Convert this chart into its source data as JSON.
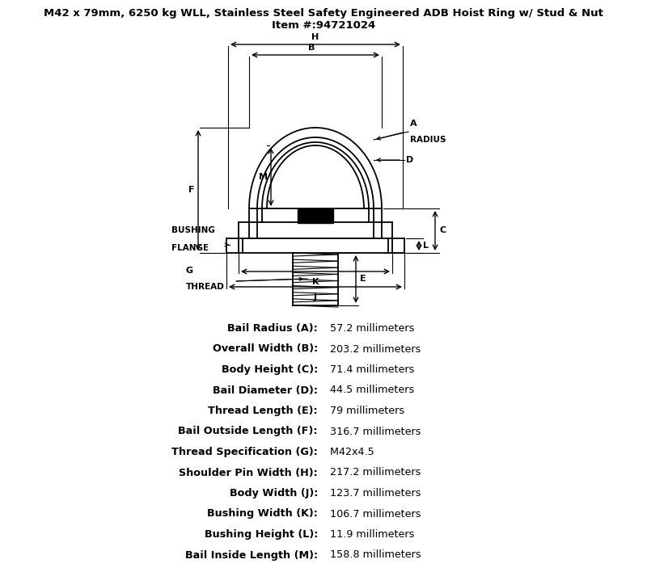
{
  "title_line1": "M42 x 79mm, 6250 kg WLL, Stainless Steel Safety Engineered ADB Hoist Ring w/ Stud & Nut",
  "title_line2": "Item #:94721024",
  "bg_color": "#ffffff",
  "line_color": "#000000",
  "specs": [
    [
      "Bail Radius (A):",
      "57.2 millimeters"
    ],
    [
      "Overall Width (B):",
      "203.2 millimeters"
    ],
    [
      "Body Height (C):",
      "71.4 millimeters"
    ],
    [
      "Bail Diameter (D):",
      "44.5 millimeters"
    ],
    [
      "Thread Length (E):",
      "79 millimeters"
    ],
    [
      "Bail Outside Length (F):",
      "316.7 millimeters"
    ],
    [
      "Thread Specification (G):",
      "M42x4.5"
    ],
    [
      "Shoulder Pin Width (H):",
      "217.2 millimeters"
    ],
    [
      "Body Width (J):",
      "123.7 millimeters"
    ],
    [
      "Bushing Width (K):",
      "106.7 millimeters"
    ],
    [
      "Bushing Height (L):",
      "11.9 millimeters"
    ],
    [
      "Bail Inside Length (M):",
      "158.8 millimeters"
    ]
  ]
}
